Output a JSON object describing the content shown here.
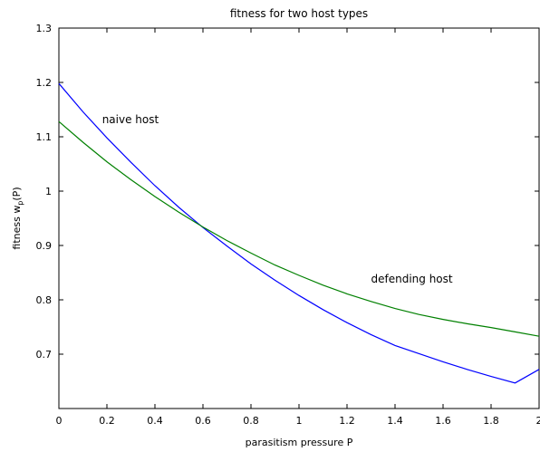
{
  "chart_data": {
    "type": "line",
    "title": "fitness for two host types",
    "xlabel": "parasitism pressure P",
    "ylabel": "fitness w_p(P)",
    "ylabel_main": "fitness w",
    "ylabel_sub": "p",
    "ylabel_tail": "(P)",
    "xlim": [
      0,
      2
    ],
    "ylim": [
      0.6,
      1.3
    ],
    "xticks": [
      0,
      0.2,
      0.4,
      0.6,
      0.8,
      1,
      1.2,
      1.4,
      1.6,
      1.8,
      2
    ],
    "xtick_labels": [
      "0",
      "0.2",
      "0.4",
      "0.6",
      "0.8",
      "1",
      "1.2",
      "1.4",
      "1.6",
      "1.8",
      "2"
    ],
    "yticks": [
      0.7,
      0.8,
      0.9,
      1,
      1.1,
      1.2,
      1.3
    ],
    "ytick_labels": [
      "0.7",
      "0.8",
      "0.9",
      "1",
      "1.1",
      "1.2",
      "1.3"
    ],
    "grid": false,
    "series": [
      {
        "name": "naive host",
        "color": "#0000ff",
        "x": [
          0,
          0.1,
          0.2,
          0.3,
          0.4,
          0.5,
          0.6,
          0.7,
          0.8,
          0.9,
          1.0,
          1.1,
          1.2,
          1.3,
          1.4,
          1.5,
          1.6,
          1.7,
          1.8,
          1.9,
          2.0
        ],
        "y": [
          1.198,
          1.146,
          1.098,
          1.053,
          1.01,
          0.97,
          0.933,
          0.899,
          0.866,
          0.836,
          0.808,
          0.782,
          0.758,
          0.736,
          0.716,
          0.701,
          0.686,
          0.672,
          0.659,
          0.647,
          0.672
        ]
      },
      {
        "name": "defending host",
        "color": "#008000",
        "x": [
          0,
          0.1,
          0.2,
          0.3,
          0.4,
          0.5,
          0.6,
          0.7,
          0.8,
          0.9,
          1.0,
          1.1,
          1.2,
          1.3,
          1.4,
          1.5,
          1.6,
          1.7,
          1.8,
          1.9,
          2.0
        ],
        "y": [
          1.128,
          1.09,
          1.054,
          1.021,
          0.99,
          0.961,
          0.934,
          0.909,
          0.886,
          0.864,
          0.845,
          0.827,
          0.811,
          0.797,
          0.784,
          0.773,
          0.764,
          0.756,
          0.749,
          0.741,
          0.733
        ]
      }
    ],
    "annotations": [
      {
        "text": "naive host",
        "x": 0.18,
        "y": 1.125
      },
      {
        "text": "defending host",
        "x": 1.3,
        "y": 0.832
      }
    ]
  }
}
